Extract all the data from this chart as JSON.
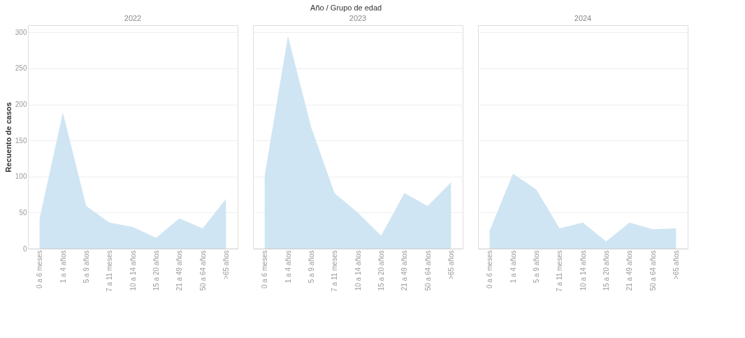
{
  "chart_data": [
    {
      "type": "area",
      "title": "2022",
      "ylabel": "Recuento de casos",
      "annotations": [
        "Año / Grupo de edad"
      ],
      "categories": [
        "0 a 6 meses",
        "1 a 4 años",
        "5 a 9 años",
        "7 a 11 meses",
        "10 a 14 años",
        "15 a 20 años",
        "21 a 49 años",
        "50 a 64 años",
        ">65 años"
      ],
      "values": [
        42,
        189,
        59,
        36,
        30,
        15,
        42,
        28,
        69
      ],
      "color": "#cfe5f3",
      "ylim": [
        0,
        310
      ],
      "yticks": [
        0,
        50,
        100,
        150,
        200,
        250,
        300
      ],
      "grid": "y"
    },
    {
      "type": "area",
      "title": "2023",
      "categories": [
        "0 a 6 meses",
        "1 a 4 años",
        "5 a 9 años",
        "7 a 11 meses",
        "10 a 14 años",
        "15 a 20 años",
        "21 a 49 años",
        "50 a 64 años",
        ">65 años"
      ],
      "values": [
        101,
        295,
        168,
        77,
        50,
        18,
        77,
        59,
        92
      ],
      "color": "#cfe5f3",
      "ylim": [
        0,
        310
      ],
      "yticks": [
        0,
        50,
        100,
        150,
        200,
        250,
        300
      ],
      "grid": "y",
      "tick_labels": "x"
    },
    {
      "type": "area",
      "title": "2024",
      "categories": [
        "0 a 6 meses",
        "1 a 4 años",
        "5 a 9 años",
        "7 a 11 meses",
        "10 a 14 años",
        "15 a 20 años",
        "21 a 49 años",
        "50 a 64 años",
        ">65 años"
      ],
      "values": [
        25,
        104,
        82,
        28,
        36,
        10,
        36,
        27,
        28
      ],
      "color": "#cfe5f3",
      "ylim": [
        0,
        310
      ],
      "yticks": [
        0,
        50,
        100,
        150,
        200,
        250,
        300
      ],
      "grid": "y",
      "tick_labels": "x"
    }
  ]
}
